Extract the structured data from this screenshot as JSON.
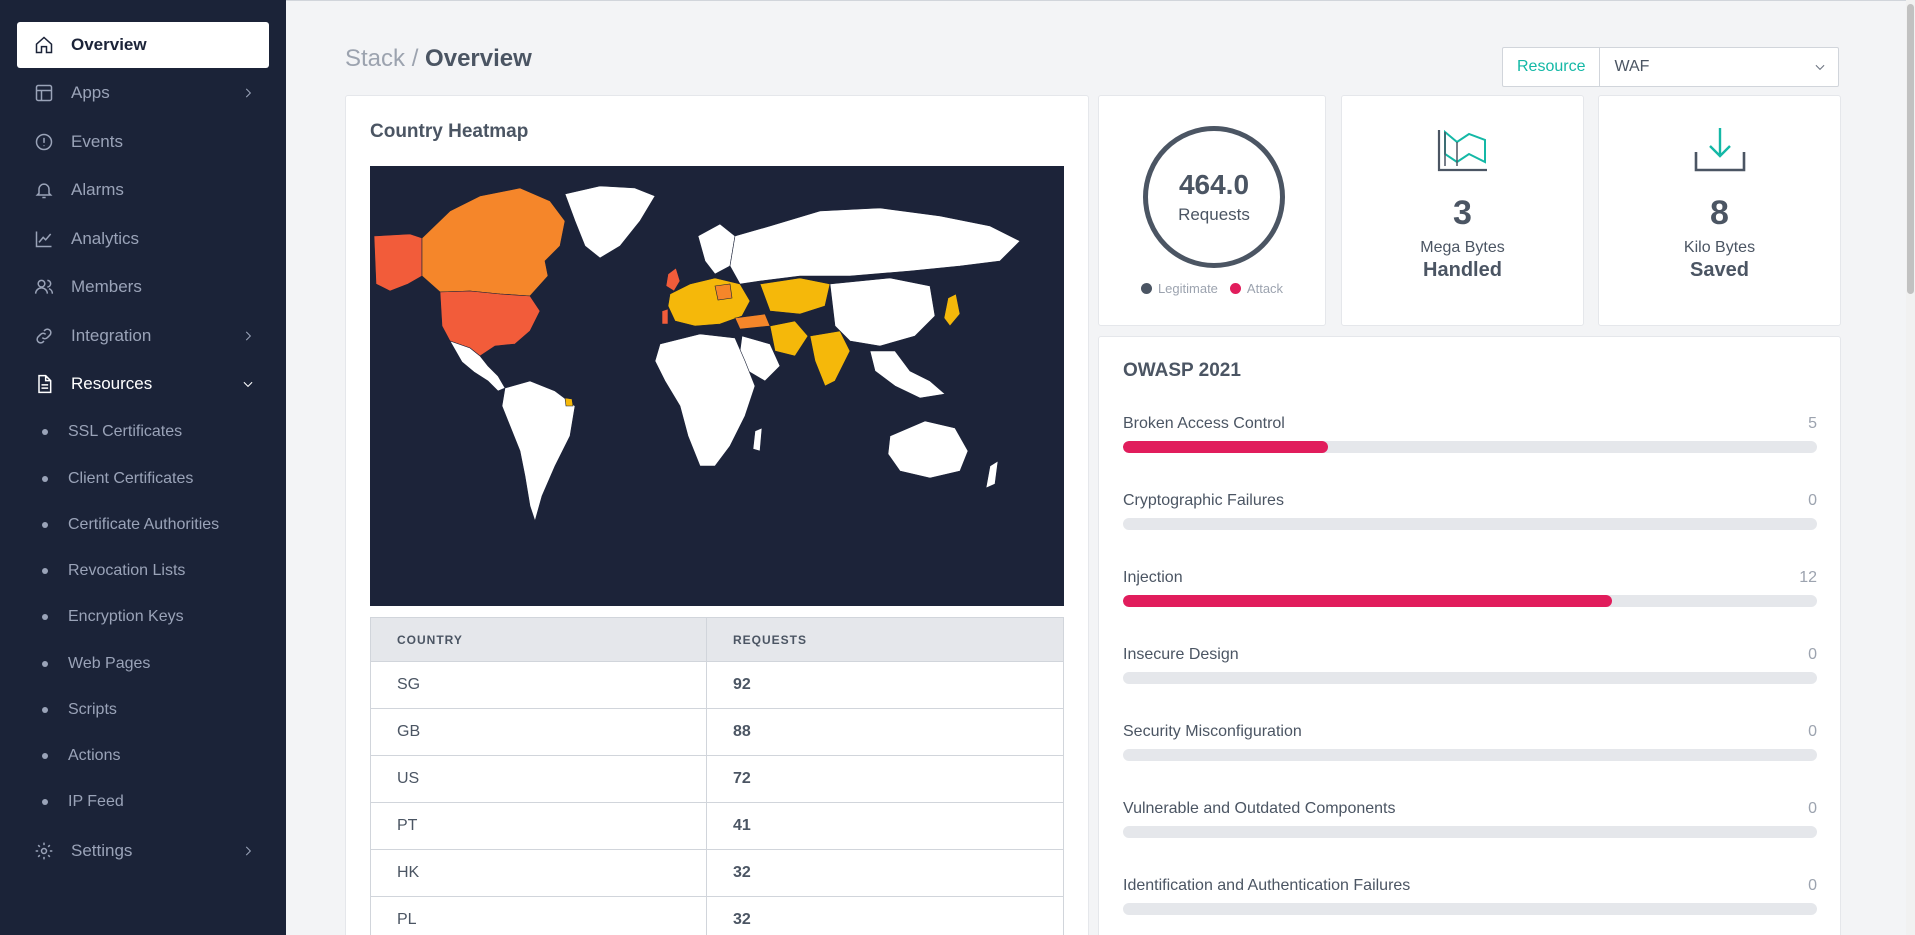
{
  "sidebar": {
    "items": [
      {
        "label": "Overview"
      },
      {
        "label": "Apps"
      },
      {
        "label": "Events"
      },
      {
        "label": "Alarms"
      },
      {
        "label": "Analytics"
      },
      {
        "label": "Members"
      },
      {
        "label": "Integration"
      },
      {
        "label": "Resources"
      },
      {
        "label": "Settings"
      }
    ],
    "resources_sub": [
      {
        "label": "SSL Certificates"
      },
      {
        "label": "Client Certificates"
      },
      {
        "label": "Certificate Authorities"
      },
      {
        "label": "Revocation Lists"
      },
      {
        "label": "Encryption Keys"
      },
      {
        "label": "Web Pages"
      },
      {
        "label": "Scripts"
      },
      {
        "label": "Actions"
      },
      {
        "label": "IP Feed"
      }
    ]
  },
  "header": {
    "breadcrumb_root": "Stack",
    "breadcrumb_sep": " / ",
    "breadcrumb_current": "Overview",
    "resource_label": "Resource",
    "resource_value": "WAF"
  },
  "heatmap": {
    "title": "Country Heatmap",
    "columns": [
      "COUNTRY",
      "REQUESTS"
    ],
    "rows": [
      {
        "country": "SG",
        "requests": "92"
      },
      {
        "country": "GB",
        "requests": "88"
      },
      {
        "country": "US",
        "requests": "72"
      },
      {
        "country": "PT",
        "requests": "41"
      },
      {
        "country": "HK",
        "requests": "32"
      },
      {
        "country": "PL",
        "requests": "32"
      }
    ]
  },
  "requests": {
    "value": "464.0",
    "label": "Requests",
    "legend_legit": "Legitimate",
    "legend_attack": "Attack"
  },
  "megabytes": {
    "value": "3",
    "unit": "Mega Bytes",
    "caption": "Handled"
  },
  "kilobytes": {
    "value": "8",
    "unit": "Kilo Bytes",
    "caption": "Saved"
  },
  "owasp": {
    "title": "OWASP 2021",
    "max": 17,
    "items": [
      {
        "name": "Broken Access Control",
        "count": "5",
        "fraction": 0.295
      },
      {
        "name": "Cryptographic Failures",
        "count": "0",
        "fraction": 0
      },
      {
        "name": "Injection",
        "count": "12",
        "fraction": 0.705
      },
      {
        "name": "Insecure Design",
        "count": "0",
        "fraction": 0
      },
      {
        "name": "Security Misconfiguration",
        "count": "0",
        "fraction": 0
      },
      {
        "name": "Vulnerable and Outdated Components",
        "count": "0",
        "fraction": 0
      },
      {
        "name": "Identification and Authentication Failures",
        "count": "0",
        "fraction": 0
      }
    ]
  },
  "colors": {
    "sidebar_bg": "#1b2338",
    "accent_teal": "#14b8a6",
    "attack": "#e11d5c",
    "legit": "#4b5563"
  }
}
